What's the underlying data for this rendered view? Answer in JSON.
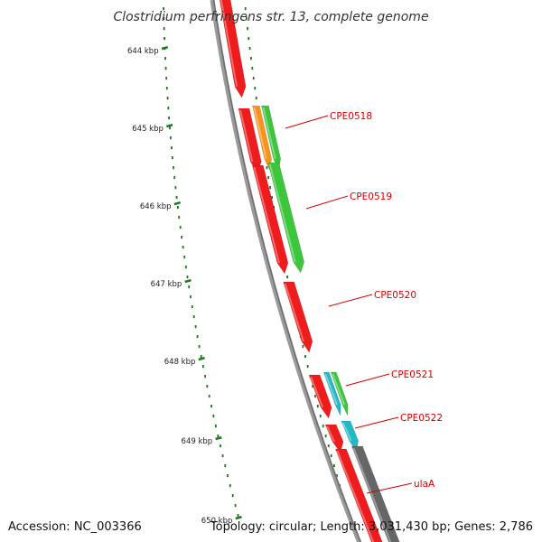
{
  "title": "Clostridium perfringens str. 13, complete genome",
  "footer": {
    "accession": "Accession: NC_003366",
    "summary": "Topology: circular; Length: 3,031,430 bp; Genes: 2,786"
  },
  "scale_ticks": [
    {
      "kbp": 644,
      "label": "644 kbp"
    },
    {
      "kbp": 645,
      "label": "645 kbp"
    },
    {
      "kbp": 646,
      "label": "646 kbp"
    },
    {
      "kbp": 647,
      "label": "647 kbp"
    },
    {
      "kbp": 648,
      "label": "648 kbp"
    },
    {
      "kbp": 649,
      "label": "649 kbp"
    },
    {
      "kbp": 650,
      "label": "650 kbp"
    }
  ],
  "gene_labels": [
    "CPE0518",
    "CPE0519",
    "CPE0520",
    "CPE0521",
    "CPE0522",
    "ulaA"
  ],
  "colors": {
    "backbone": "#888888",
    "cds": "#ee1c1c",
    "orange_feature": "#f7941d",
    "green_feature": "#3cc63c",
    "cyan_feature": "#22b8c8",
    "gray_feature": "#666666",
    "tick": "#1d7a1d",
    "label": "#d40000"
  }
}
